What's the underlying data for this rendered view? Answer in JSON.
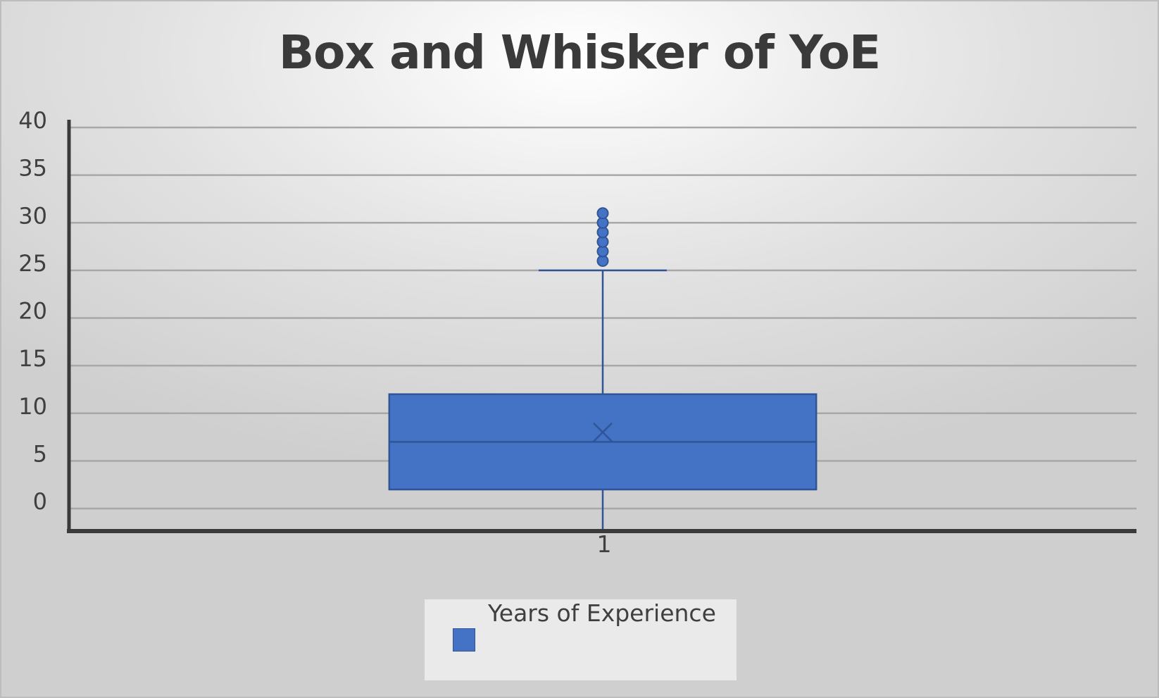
{
  "chart_data": {
    "type": "boxplot",
    "title": "Box and Whisker of YoE",
    "xlabel": "",
    "ylabel": "",
    "ylim": [
      0,
      40
    ],
    "y_ticks": [
      0,
      5,
      10,
      15,
      20,
      25,
      30,
      35,
      40
    ],
    "y_tick_labels": [
      "0",
      "5",
      "10",
      "15",
      "20",
      "25",
      "30",
      "35",
      "40"
    ],
    "categories": [
      "1"
    ],
    "grid": true,
    "legend_position": "bottom",
    "series": [
      {
        "name": "Years of Experience",
        "color": "#4472c4",
        "min": 0,
        "q1": 2,
        "median": 7,
        "q3": 12,
        "whisker_high": 25,
        "mean": 8,
        "outliers": [
          26,
          27,
          28,
          29,
          30,
          31
        ]
      }
    ]
  }
}
